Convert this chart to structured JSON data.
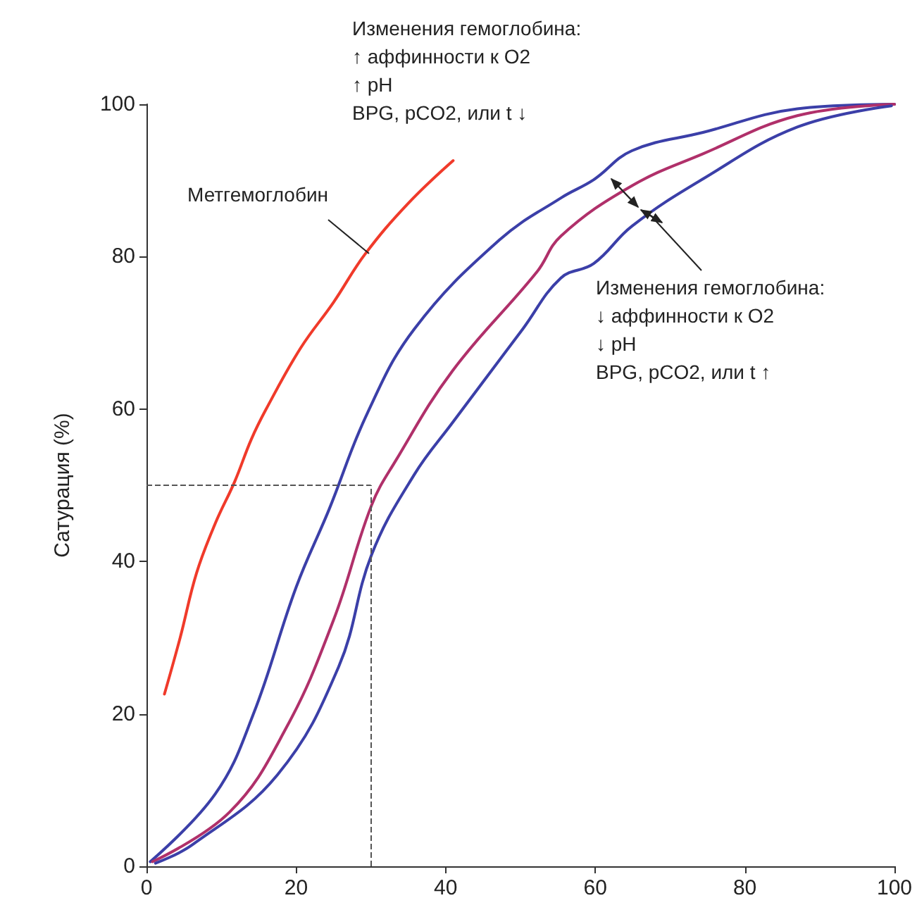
{
  "chart_data": {
    "type": "line",
    "ylabel": "Сатурация (%)",
    "xlim": [
      0,
      100
    ],
    "xticks": [
      0,
      20,
      40,
      60,
      80,
      100
    ],
    "ylim": [
      0,
      100
    ],
    "yticks": [
      0,
      20,
      40,
      60,
      80,
      100
    ],
    "grid": false,
    "legend": false,
    "marker": "none",
    "line_style": "solid",
    "series": [
      {
        "name": "Метгемоглобин",
        "color": "#f03a2a",
        "x": [
          2.4,
          4.5,
          6.7,
          9.2,
          11.8,
          14,
          16,
          20.6,
          25,
          29.2,
          35,
          41
        ],
        "values": [
          22.6,
          30,
          38.5,
          45,
          50.5,
          56,
          60,
          68,
          74,
          80.3,
          87,
          92.6
        ]
      },
      {
        "color": "#3b3fa8",
        "x": [
          0.5,
          9.2,
          14.3,
          20,
          24.4,
          29.5,
          35.8,
          47.2,
          55.4,
          59.8,
          64.9,
          74.4,
          87,
          100
        ],
        "values": [
          0.6,
          9.5,
          20,
          36.6,
          46.8,
          59.4,
          70.5,
          82.2,
          87.7,
          90.1,
          93.9,
          96.3,
          99.4,
          100
        ]
      },
      {
        "color": "#b0306a",
        "x": [
          0.8,
          11.1,
          18.7,
          25,
          30.1,
          33.3,
          40.9,
          52.2,
          55.4,
          64.9,
          74.4,
          87,
          100
        ],
        "values": [
          0.6,
          7.1,
          18.2,
          32.3,
          47.4,
          53.2,
          65,
          78,
          82.7,
          89.3,
          93.5,
          98.5,
          100
        ]
      },
      {
        "color": "#3b3fa8",
        "x": [
          1.2,
          6.1,
          17.5,
          25.7,
          30.1,
          35.8,
          40.9,
          50.3,
          55.4,
          59.8,
          64.9,
          74.4,
          87,
          99.6
        ],
        "values": [
          0.4,
          2.8,
          12,
          26.2,
          40.9,
          51.4,
          58.2,
          70.5,
          77.2,
          79.1,
          84,
          90.2,
          97,
          99.8
        ]
      }
    ],
    "ref_lines": [
      {
        "axis": "y",
        "value": 50,
        "color": "#555555",
        "line_style": "dashed"
      },
      {
        "axis": "x",
        "value": 30,
        "color": "#555555",
        "line_style": "dashed"
      }
    ],
    "annotations": [
      "Изменения гемоглобина:\n↑ аффинности к O2\n↑ pH\nBPG, pCO2, или t ↓",
      "Изменения гемоглобина:\n↓ аффинности к O2\n↓ pH\nBPG, pCO2, или t ↑"
    ]
  }
}
